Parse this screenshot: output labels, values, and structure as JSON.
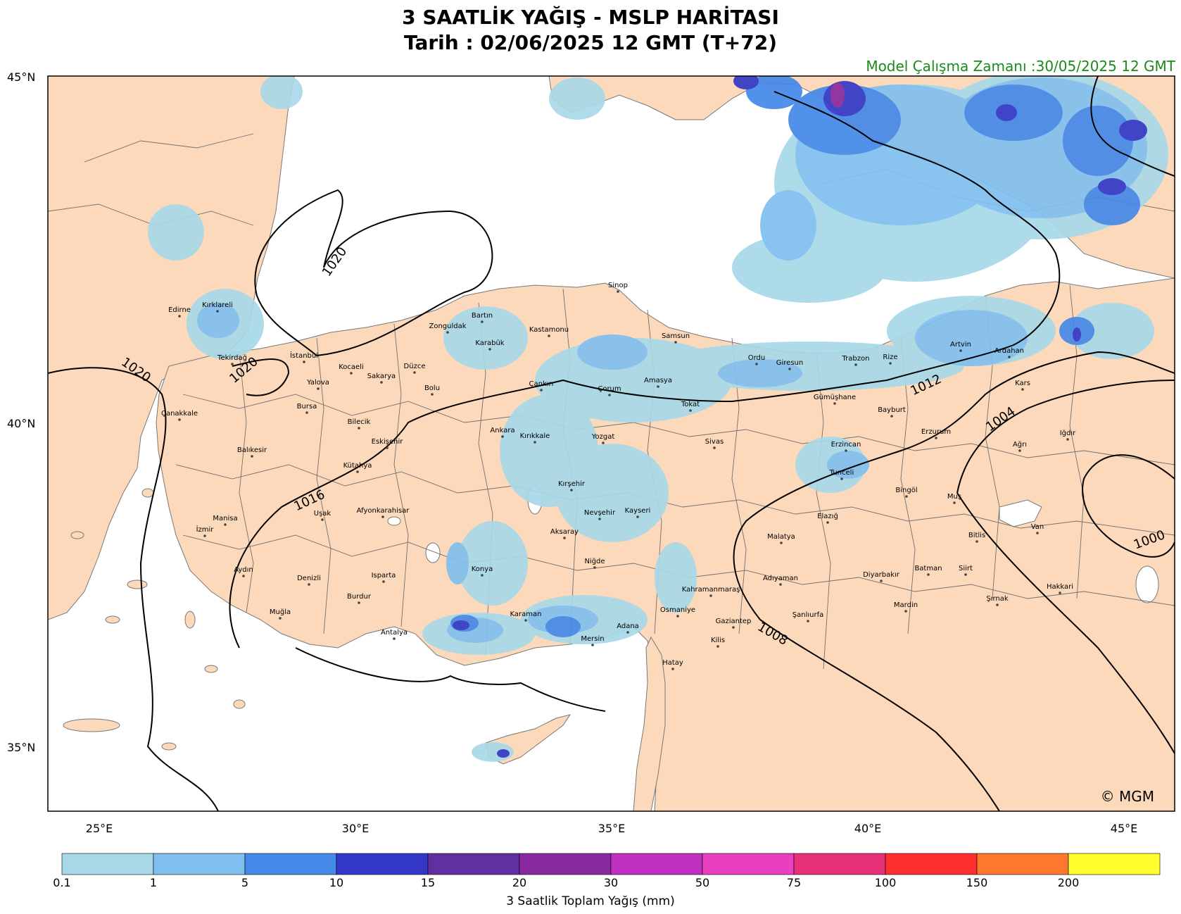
{
  "title_line1": "3 SAATLİK YAĞIŞ - MSLP HARİTASI",
  "title_line2": "Tarih : 02/06/2025  12 GMT (T+72)",
  "model_time": "Model Çalışma Zamanı :30/05/2025  12 GMT",
  "copyright": "© MGM",
  "axes": {
    "lat_labels": [
      "45°N",
      "40°N",
      "35°N"
    ],
    "lon_labels": [
      "25°E",
      "30°E",
      "35°E",
      "40°E",
      "45°E"
    ]
  },
  "colorbar": {
    "title": "3 Saatlik Toplam Yağış (mm)",
    "ticks": [
      "0.1",
      "1",
      "5",
      "10",
      "15",
      "20",
      "30",
      "50",
      "75",
      "100",
      "150",
      "200"
    ],
    "colors": [
      "#a8d8e8",
      "#80c0f0",
      "#4488e8",
      "#3338c8",
      "#6030a0",
      "#8a2aa0",
      "#c030c0",
      "#e840c0",
      "#e83078",
      "#ff3030",
      "#ff7830",
      "#ffff30"
    ]
  },
  "colors": {
    "land": "#fdd9bb",
    "sea": "#ffffff"
  },
  "isobars": [
    "1020",
    "1020",
    "1020",
    "1016",
    "1012",
    "1008",
    "1004",
    "1000"
  ],
  "cities": [
    "Sinop",
    "Edirne",
    "Kırklareli",
    "Bartın",
    "Zonguldak",
    "Kastamonu",
    "Samsun",
    "Karabük",
    "Tekirdağ",
    "İstanbul",
    "Kocaeli",
    "Düzce",
    "Sakarya",
    "Ordu",
    "Giresun",
    "Trabzon",
    "Rize",
    "Artvin",
    "Ardahan",
    "Yalova",
    "Bolu",
    "Çankırı",
    "Çorum",
    "Amasya",
    "Tokat",
    "Kars",
    "Gümüşhane",
    "Bayburt",
    "Bursa",
    "Çanakkale",
    "Bilecik",
    "Ankara",
    "Kırıkkale",
    "Yozgat",
    "Sivas",
    "Erzincan",
    "Erzurum",
    "Ağrı",
    "Iğdır",
    "Eskişehir",
    "Balıkesir",
    "Kütahya",
    "Kırşehir",
    "Tunceli",
    "Bingöl",
    "Muş",
    "Uşak",
    "Afyonkarahisar",
    "Nevşehir",
    "Kayseri",
    "Elazığ",
    "Manisa",
    "Aksaray",
    "Malatya",
    "Bitlis",
    "Van",
    "İzmir",
    "Niğde",
    "Konya",
    "Aydın",
    "Denizli",
    "Isparta",
    "Adıyaman",
    "Diyarbakır",
    "Batman",
    "Siirt",
    "Kahramanmaraş",
    "Hakkari",
    "Burdur",
    "Şırnak",
    "Mardin",
    "Osmaniye",
    "Muğla",
    "Gaziantep",
    "Şanlıurfa",
    "Karaman",
    "Adana",
    "Antalya",
    "Mersin",
    "Kilis",
    "Hatay"
  ]
}
